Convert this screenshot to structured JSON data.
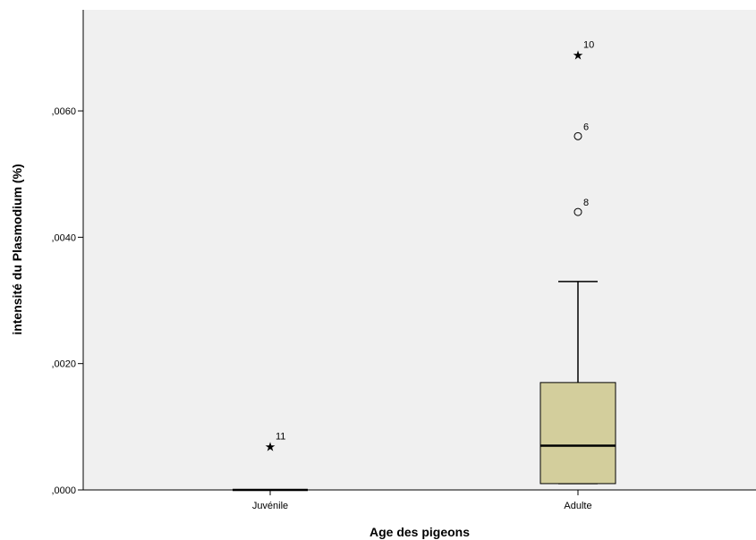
{
  "chart_data": {
    "type": "boxplot",
    "title": "",
    "xlabel": "Age des pigeons",
    "ylabel": "intensité du Plasmodium (%)",
    "ylim": [
      0,
      0.0076
    ],
    "yticks": [
      0,
      0.002,
      0.004,
      0.006
    ],
    "ytick_labels": [
      ",0000",
      ",0020",
      ",0040",
      ",0060"
    ],
    "grid": false,
    "plot_background": "#f0f0f0",
    "box_color": "#d3ce9c",
    "categories": [
      "Juvénile",
      "Adulte"
    ],
    "groups": [
      {
        "category": "Juvénile",
        "min": 0,
        "q1": 0,
        "median": 0,
        "q3": 0,
        "max": 0,
        "outliers": [
          {
            "id": "11",
            "value": 0.0007,
            "marker": "star"
          }
        ]
      },
      {
        "category": "Adulte",
        "min": 0.0001,
        "q1": 0.0001,
        "median": 0.0007,
        "q3": 0.0017,
        "max": 0.0033,
        "outliers": [
          {
            "id": "8",
            "value": 0.0044,
            "marker": "circle"
          },
          {
            "id": "6",
            "value": 0.0056,
            "marker": "circle"
          },
          {
            "id": "10",
            "value": 0.0069,
            "marker": "star"
          }
        ]
      }
    ]
  }
}
